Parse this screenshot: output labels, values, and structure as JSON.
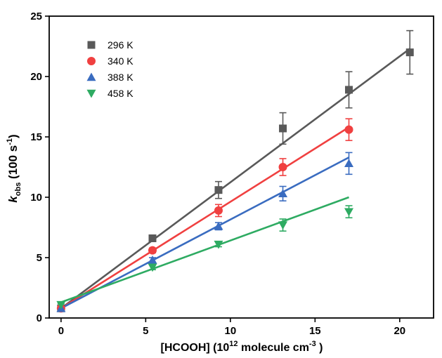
{
  "chart_data": {
    "type": "scatter",
    "xlabel": {
      "main": "[HCOOH] (10",
      "sup": "12",
      "mid": " molecule cm",
      "sup2": "-3",
      "end": " )"
    },
    "ylabel": {
      "k": "k",
      "sub": "obs",
      "unit": " (100 s",
      "sup": "-1",
      "end": ")"
    },
    "xlim": [
      -0.7,
      22
    ],
    "ylim": [
      0,
      25
    ],
    "xticks": [
      0,
      5,
      10,
      15,
      20
    ],
    "yticks": [
      0,
      5,
      10,
      15,
      20,
      25
    ],
    "grid": false,
    "legend_position": "top-left",
    "series": [
      {
        "name": "296 K",
        "color": "#595959",
        "marker": "square",
        "x": [
          0,
          5.4,
          9.3,
          13.1,
          17.0,
          20.6
        ],
        "y": [
          0.8,
          6.6,
          10.6,
          15.7,
          18.9,
          22.0
        ],
        "err": [
          0.2,
          0.2,
          0.7,
          1.3,
          1.5,
          1.8
        ],
        "fit": [
          [
            0,
            0.8
          ],
          [
            20.6,
            22.3
          ]
        ]
      },
      {
        "name": "340 K",
        "color": "#f04040",
        "marker": "circle",
        "x": [
          0,
          5.4,
          9.3,
          13.1,
          17.0
        ],
        "y": [
          0.8,
          5.6,
          8.9,
          12.5,
          15.6
        ],
        "err": [
          0.2,
          0.2,
          0.5,
          0.7,
          0.9
        ],
        "fit": [
          [
            0,
            0.8
          ],
          [
            17.0,
            15.8
          ]
        ]
      },
      {
        "name": "388 K",
        "color": "#3a6cc0",
        "marker": "triangle-up",
        "x": [
          0,
          5.4,
          9.3,
          13.1,
          17.0
        ],
        "y": [
          0.8,
          4.8,
          7.6,
          10.3,
          12.8
        ],
        "err": [
          0.2,
          0.2,
          0.3,
          0.6,
          0.9
        ],
        "fit": [
          [
            0,
            0.8
          ],
          [
            17.0,
            13.3
          ]
        ]
      },
      {
        "name": "458 K",
        "color": "#2eab62",
        "marker": "triangle-down",
        "x": [
          0,
          5.4,
          9.3,
          13.1,
          17.0
        ],
        "y": [
          1.1,
          4.2,
          6.1,
          7.7,
          8.8
        ],
        "err": [
          0.1,
          0.2,
          0.2,
          0.5,
          0.5
        ],
        "fit": [
          [
            0,
            1.3
          ],
          [
            17.0,
            10.0
          ]
        ]
      }
    ]
  }
}
